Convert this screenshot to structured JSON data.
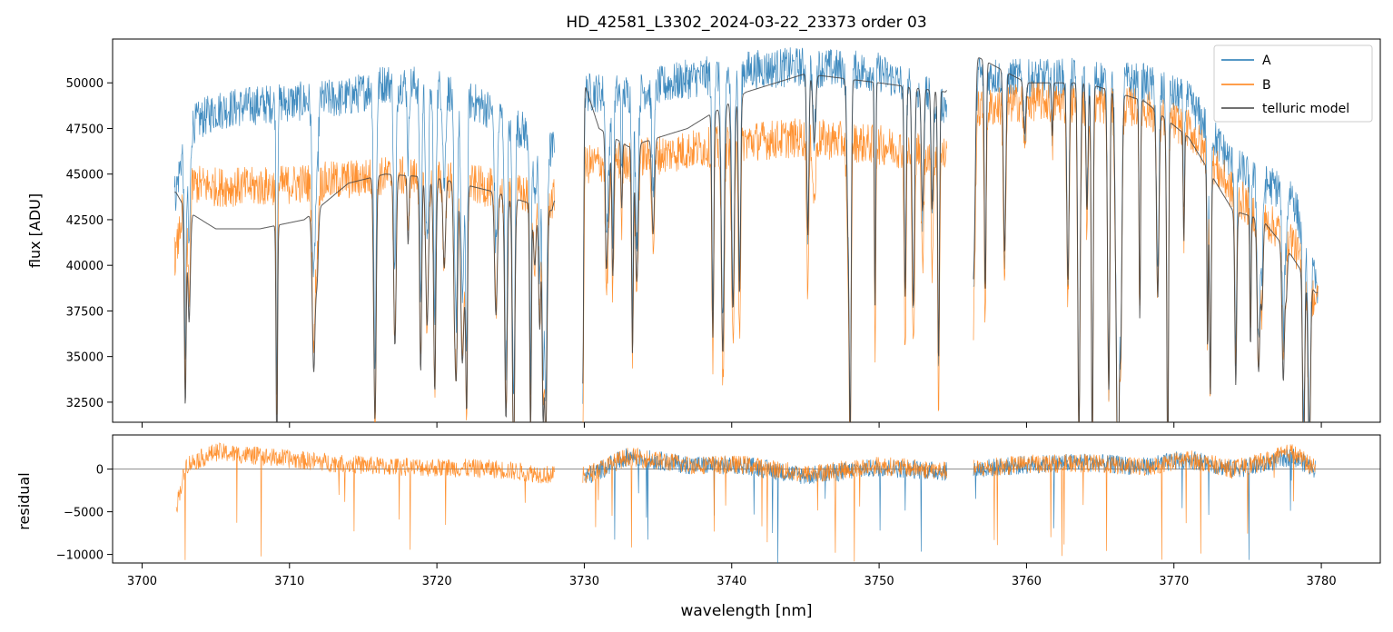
{
  "chart_data": [
    {
      "panel": "top",
      "type": "line",
      "title": "HD_42581_L3302_2024-03-22_23373  order 03",
      "xlabel": "",
      "ylabel": "flux [ADU]",
      "xlim": [
        3698,
        3784
      ],
      "ylim": [
        31400,
        52400
      ],
      "yticks": [
        32500,
        35000,
        37500,
        40000,
        42500,
        45000,
        47500,
        50000
      ],
      "grid": false,
      "legend": "top-right",
      "legend_entries": [
        "A",
        "B",
        "telluric model"
      ],
      "segments": [
        [
          3702.2,
          3728.0
        ],
        [
          3729.9,
          3754.6
        ],
        [
          3756.4,
          3779.8
        ]
      ],
      "series": [
        {
          "name": "A",
          "color": "#1f77b4",
          "x": [
            3702.3,
            3703.0,
            3705.0,
            3708.0,
            3711.0,
            3714.0,
            3716.5,
            3720.0,
            3724.0,
            3727.8,
            3730.0,
            3733.0,
            3737.0,
            3741.0,
            3745.0,
            3750.0,
            3754.5,
            3756.5,
            3760.0,
            3764.0,
            3768.0,
            3771.0,
            3774.0,
            3776.0,
            3778.0,
            3779.6
          ],
          "values": [
            44000,
            47500,
            48500,
            48800,
            49000,
            49200,
            50000,
            49800,
            48400,
            46300,
            49500,
            49400,
            50200,
            50700,
            50900,
            50600,
            48800,
            50500,
            50200,
            50300,
            50000,
            49000,
            45500,
            44500,
            44000,
            39000
          ]
        },
        {
          "name": "B",
          "color": "#ff7f0e",
          "x": [
            3702.3,
            3703.0,
            3705.0,
            3708.0,
            3711.0,
            3714.0,
            3716.5,
            3720.0,
            3724.0,
            3727.8,
            3730.0,
            3733.0,
            3737.0,
            3741.0,
            3745.0,
            3750.0,
            3754.5,
            3756.5,
            3760.0,
            3764.0,
            3768.0,
            3771.0,
            3774.0,
            3776.0,
            3778.0,
            3779.6
          ],
          "values": [
            40500,
            44500,
            44300,
            44300,
            44500,
            44700,
            44900,
            44800,
            44200,
            43500,
            45500,
            45800,
            46300,
            46800,
            47000,
            46600,
            46000,
            48500,
            49000,
            48900,
            48600,
            47500,
            44000,
            42500,
            41500,
            38000
          ]
        },
        {
          "name": "telluric model",
          "color": "#404040",
          "x": [
            3702.3,
            3703.0,
            3705.0,
            3708.0,
            3711.0,
            3714.0,
            3716.5,
            3720.0,
            3724.0,
            3727.8,
            3730.0,
            3731.0,
            3733.0,
            3737.0,
            3741.0,
            3745.0,
            3750.0,
            3754.5,
            3756.5,
            3760.0,
            3764.0,
            3768.0,
            3771.0,
            3774.0,
            3776.0,
            3778.0,
            3779.6
          ],
          "values": [
            44000,
            43000,
            42000,
            42000,
            42500,
            44500,
            45000,
            44800,
            44000,
            43000,
            50000,
            47500,
            46500,
            47500,
            49500,
            50500,
            50000,
            49500,
            51500,
            50000,
            50000,
            49000,
            47000,
            43000,
            42500,
            40500,
            38500
          ]
        }
      ]
    },
    {
      "panel": "bottom",
      "type": "line",
      "title": "",
      "xlabel": "wavelength [nm]",
      "ylabel": "residual",
      "xlim": [
        3698,
        3784
      ],
      "ylim": [
        -11000,
        4000
      ],
      "yticks": [
        -10000,
        -5000,
        0
      ],
      "xticks": [
        3700,
        3710,
        3720,
        3730,
        3740,
        3750,
        3760,
        3770,
        3780
      ],
      "grid": false,
      "zero_line": 0,
      "series": [
        {
          "name": "A",
          "color": "#1f77b4",
          "x": [
            3730.0,
            3733.0,
            3737.0,
            3741.0,
            3745.0,
            3750.0,
            3754.5,
            3756.5,
            3760.0,
            3764.0,
            3768.0,
            3771.0,
            3774.0,
            3776.0,
            3778.0,
            3779.6
          ],
          "values": [
            -1000,
            1500,
            500,
            400,
            -800,
            200,
            -300,
            0,
            500,
            800,
            300,
            1200,
            0,
            500,
            1500,
            0
          ]
        },
        {
          "name": "B",
          "color": "#ff7f0e",
          "x": [
            3702.3,
            3703.0,
            3705.0,
            3708.0,
            3711.0,
            3714.0,
            3716.5,
            3720.0,
            3724.0,
            3727.8,
            3730.0,
            3733.0,
            3737.0,
            3741.0,
            3745.0,
            3750.0,
            3754.5,
            3756.5,
            3760.0,
            3764.0,
            3768.0,
            3771.0,
            3774.0,
            3776.0,
            3778.0,
            3779.6
          ],
          "values": [
            -4500,
            500,
            2000,
            1500,
            1000,
            600,
            300,
            200,
            0,
            -700,
            -800,
            1500,
            500,
            500,
            -600,
            400,
            -200,
            0,
            600,
            700,
            200,
            1200,
            0,
            800,
            2000,
            0
          ]
        }
      ]
    }
  ]
}
